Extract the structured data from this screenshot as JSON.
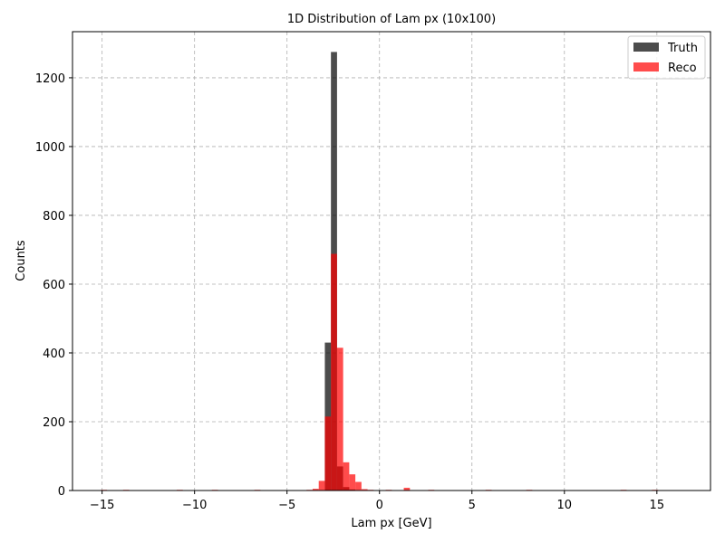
{
  "chart_data": {
    "type": "bar",
    "title": "1D Distribution of Lam px (10x100)",
    "xlabel": "Lam px [GeV]",
    "ylabel": "Counts",
    "xlim": [
      -16.6,
      17.9
    ],
    "ylim": [
      0,
      1334
    ],
    "x_ticks": [
      -15,
      -10,
      -5,
      0,
      5,
      10,
      15
    ],
    "y_ticks": [
      0,
      200,
      400,
      600,
      800,
      1000,
      1200
    ],
    "grid": true,
    "legend_position": "top-right",
    "bin_width": 0.33,
    "series": [
      {
        "name": "Truth",
        "color": "#000000",
        "opacity": 0.7,
        "bins": [
          {
            "x": -2.79,
            "y": 430
          },
          {
            "x": -2.46,
            "y": 1275
          },
          {
            "x": -2.13,
            "y": 70
          },
          {
            "x": -1.8,
            "y": 10
          },
          {
            "x": -1.47,
            "y": 3
          }
        ]
      },
      {
        "name": "Reco",
        "color": "#ff0000",
        "opacity": 0.7,
        "bins": [
          {
            "x": -14.9,
            "y": 2
          },
          {
            "x": -13.7,
            "y": 2
          },
          {
            "x": -12.3,
            "y": 1
          },
          {
            "x": -11.2,
            "y": 1
          },
          {
            "x": -10.8,
            "y": 2
          },
          {
            "x": -9.9,
            "y": 1
          },
          {
            "x": -8.9,
            "y": 2
          },
          {
            "x": -7.6,
            "y": 1
          },
          {
            "x": -6.6,
            "y": 2
          },
          {
            "x": -5.2,
            "y": 1
          },
          {
            "x": -4.4,
            "y": 1
          },
          {
            "x": -3.78,
            "y": 2
          },
          {
            "x": -3.45,
            "y": 5
          },
          {
            "x": -3.12,
            "y": 28
          },
          {
            "x": -2.79,
            "y": 215
          },
          {
            "x": -2.46,
            "y": 688
          },
          {
            "x": -2.13,
            "y": 415
          },
          {
            "x": -1.8,
            "y": 82
          },
          {
            "x": -1.47,
            "y": 47
          },
          {
            "x": -1.14,
            "y": 25
          },
          {
            "x": -0.81,
            "y": 4
          },
          {
            "x": -0.48,
            "y": 2
          },
          {
            "x": 0.5,
            "y": 2
          },
          {
            "x": 1.48,
            "y": 8
          },
          {
            "x": 2.8,
            "y": 2
          },
          {
            "x": 3.8,
            "y": 1
          },
          {
            "x": 4.6,
            "y": 1
          },
          {
            "x": 5.9,
            "y": 2
          },
          {
            "x": 6.9,
            "y": 1
          },
          {
            "x": 8.1,
            "y": 2
          },
          {
            "x": 12.3,
            "y": 1
          },
          {
            "x": 13.2,
            "y": 2
          },
          {
            "x": 14.9,
            "y": 2
          }
        ]
      }
    ]
  }
}
